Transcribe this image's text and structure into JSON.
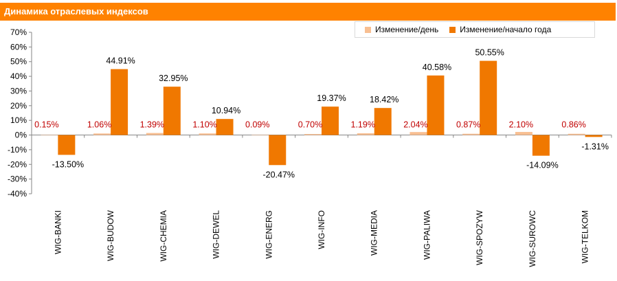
{
  "title": "Динамика отраслевых индексов",
  "colors": {
    "daily": "#f8bf92",
    "ytd": "#f07800",
    "title_bg": "#ff8200",
    "daily_label": "#c00000"
  },
  "chart_data": {
    "type": "bar",
    "title": "Динамика отраслевых индексов",
    "categories": [
      "WIG-BANKI",
      "WIG-BUDOW",
      "WIG-CHEMIA",
      "WIG-DEWEL",
      "WIG-ENERG",
      "WIG-INFO",
      "WIG-MEDIA",
      "WIG-PALIWA",
      "WIG-SPOZYW",
      "WIG-SUROWC",
      "WIG-TELKOM"
    ],
    "series": [
      {
        "name": "Изменение/день",
        "values": [
          0.15,
          1.06,
          1.39,
          1.1,
          0.09,
          0.7,
          1.19,
          2.04,
          0.87,
          2.1,
          0.86
        ],
        "labels": [
          "0.15%",
          "1.06%",
          "1.39%",
          "1.10%",
          "0.09%",
          "0.70%",
          "1.19%",
          "2.04%",
          "0.87%",
          "2.10%",
          "0.86%"
        ]
      },
      {
        "name": "Изменение/начало года",
        "values": [
          -13.5,
          44.91,
          32.95,
          10.94,
          -20.47,
          19.37,
          18.42,
          40.58,
          50.55,
          -14.09,
          -1.31
        ],
        "labels": [
          "-13.50%",
          "44.91%",
          "32.95%",
          "10.94%",
          "-20.47%",
          "19.37%",
          "18.42%",
          "40.58%",
          "50.55%",
          "-14.09%",
          "-1.31%"
        ]
      }
    ],
    "ylim": [
      -40,
      70
    ],
    "yticks": [
      70,
      60,
      50,
      40,
      30,
      20,
      10,
      0,
      -10,
      -20,
      -30,
      -40
    ],
    "ytick_labels": [
      "70%",
      "60%",
      "50%",
      "40%",
      "30%",
      "20%",
      "10%",
      "0%",
      "-10%",
      "-20%",
      "-30%",
      "-40%"
    ],
    "legend": "top-right",
    "grid": false
  }
}
